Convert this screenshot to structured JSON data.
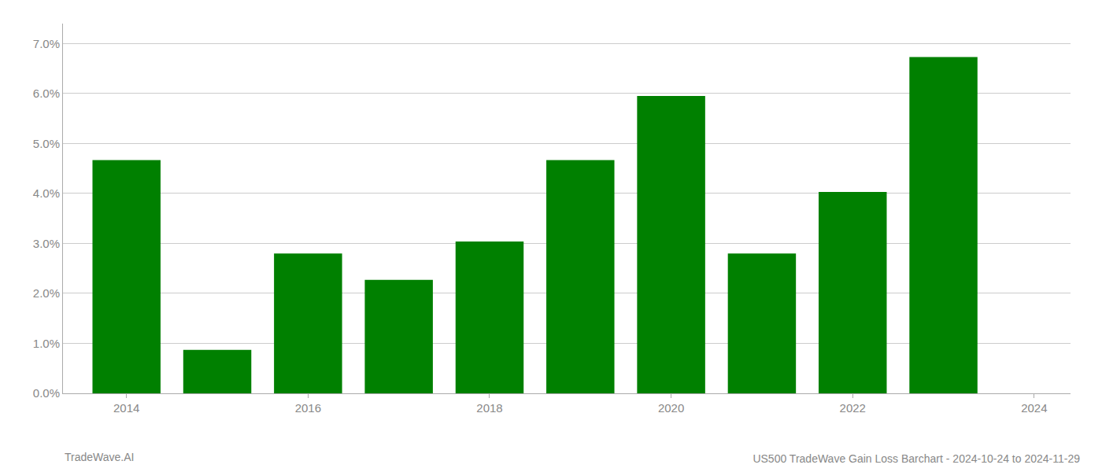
{
  "chart_data": {
    "type": "bar",
    "title": "US500 TradeWave Gain Loss Barchart - 2024-10-24 to 2024-11-29",
    "annotations": [
      "TradeWave.AI"
    ],
    "x": [
      2014,
      2015,
      2016,
      2017,
      2018,
      2019,
      2020,
      2021,
      2022,
      2023
    ],
    "values": [
      0.0467,
      0.0087,
      0.028,
      0.0227,
      0.0304,
      0.0467,
      0.0595,
      0.028,
      0.0403,
      0.0673
    ],
    "color": "#008000",
    "xlim": [
      2013.3,
      2024.4
    ],
    "xticks": [
      2014,
      2016,
      2018,
      2020,
      2022,
      2024
    ],
    "ylim": [
      0,
      0.074
    ],
    "yticks": [
      {
        "value": 0.0,
        "label": "0.0%"
      },
      {
        "value": 0.01,
        "label": "1.0%"
      },
      {
        "value": 0.02,
        "label": "2.0%"
      },
      {
        "value": 0.03,
        "label": "3.0%"
      },
      {
        "value": 0.04,
        "label": "4.0%"
      },
      {
        "value": 0.05,
        "label": "5.0%"
      },
      {
        "value": 0.06,
        "label": "6.0%"
      },
      {
        "value": 0.07,
        "label": "7.0%"
      }
    ],
    "grid": true
  }
}
